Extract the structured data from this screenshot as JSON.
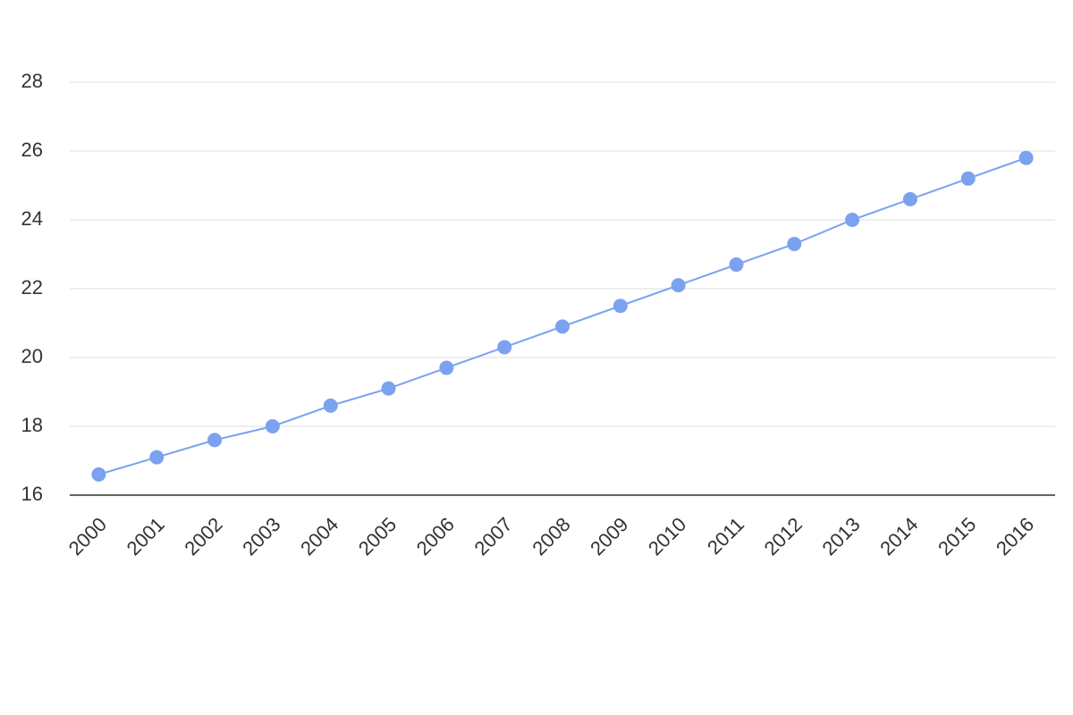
{
  "chart_data": {
    "type": "line",
    "categories": [
      "2000",
      "2001",
      "2002",
      "2003",
      "2004",
      "2005",
      "2006",
      "2007",
      "2008",
      "2009",
      "2010",
      "2011",
      "2012",
      "2013",
      "2014",
      "2015",
      "2016"
    ],
    "values": [
      16.6,
      17.1,
      17.6,
      18.0,
      18.6,
      19.1,
      19.7,
      20.3,
      20.9,
      21.5,
      22.1,
      22.7,
      23.3,
      24.0,
      24.6,
      25.2,
      25.8
    ],
    "color": "#7ba2f0",
    "ylim": [
      16,
      28
    ],
    "yticks": [
      16,
      18,
      20,
      22,
      24,
      26,
      28
    ],
    "grid": true
  }
}
